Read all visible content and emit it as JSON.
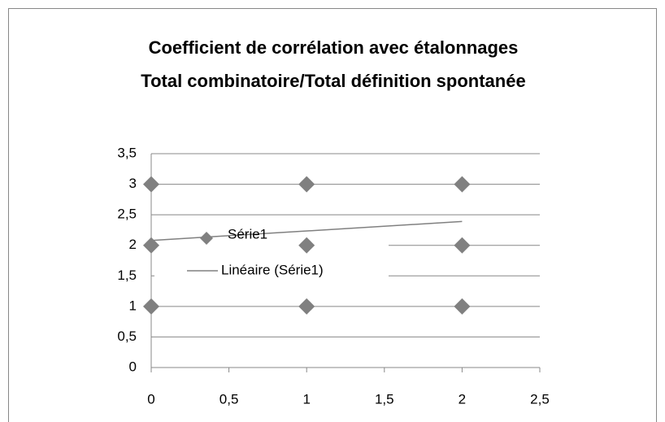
{
  "chart_data": {
    "type": "scatter",
    "title_lines": [
      "Coefficient de corrélation avec étalonnages",
      "Total combinatoire/Total définition spontanée"
    ],
    "series": [
      {
        "name": "Série1",
        "color": "#808080",
        "mode": "markers",
        "x": [
          0,
          0,
          0,
          1,
          1,
          1,
          2,
          2,
          2
        ],
        "values": [
          3,
          2,
          1,
          3,
          2,
          1,
          3,
          2,
          1
        ]
      },
      {
        "name": "Linéaire (Série1)",
        "color": "#808080",
        "mode": "line",
        "x": [
          0,
          2
        ],
        "values": [
          2.08,
          2.39
        ]
      }
    ],
    "xlim": [
      0,
      2.5
    ],
    "xticks": [
      0,
      {
        "value": 0.5,
        "label": "0,5"
      },
      1,
      {
        "value": 1.5,
        "label": "1,5"
      },
      2,
      {
        "value": 2.5,
        "label": "2,5"
      }
    ],
    "ylim": [
      0,
      3.5
    ],
    "yticks": [
      0,
      {
        "value": 0.5,
        "label": "0,5"
      },
      1,
      {
        "value": 1.5,
        "label": "1,5"
      },
      2,
      {
        "value": 2.5,
        "label": "2,5"
      },
      3,
      {
        "value": 3.5,
        "label": "3,5"
      }
    ],
    "grid": true
  }
}
